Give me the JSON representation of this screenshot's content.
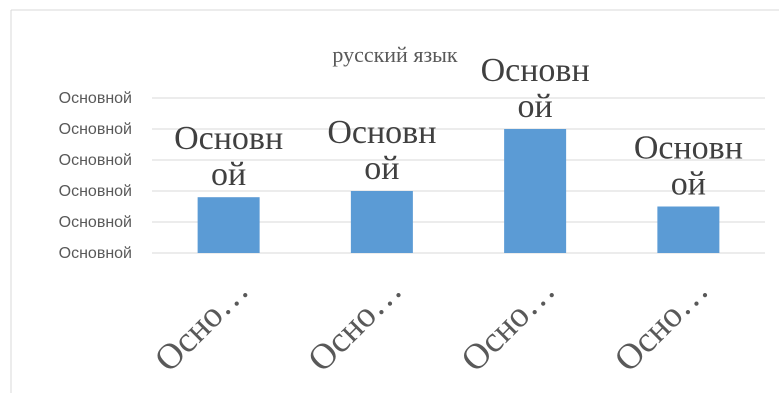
{
  "chart_data": {
    "type": "bar",
    "title": "русский язык",
    "categories": [
      "Осно…",
      "Осно…",
      "Осно…",
      "Осно…"
    ],
    "y_tick_labels": [
      "Основной",
      "Основной",
      "Основной",
      "Основной",
      "Основной",
      "Основной"
    ],
    "ylim": [
      0,
      5
    ],
    "grid": true,
    "legend": "none",
    "series": [
      {
        "values": [
          1.8,
          2.0,
          4.0,
          1.5
        ],
        "color": "#5B9BD5",
        "data_labels": [
          [
            "Основн",
            "ой"
          ],
          [
            "Основн",
            "ой"
          ],
          [
            "Основн",
            "ой"
          ],
          [
            "Основн",
            "ой"
          ]
        ]
      }
    ]
  }
}
